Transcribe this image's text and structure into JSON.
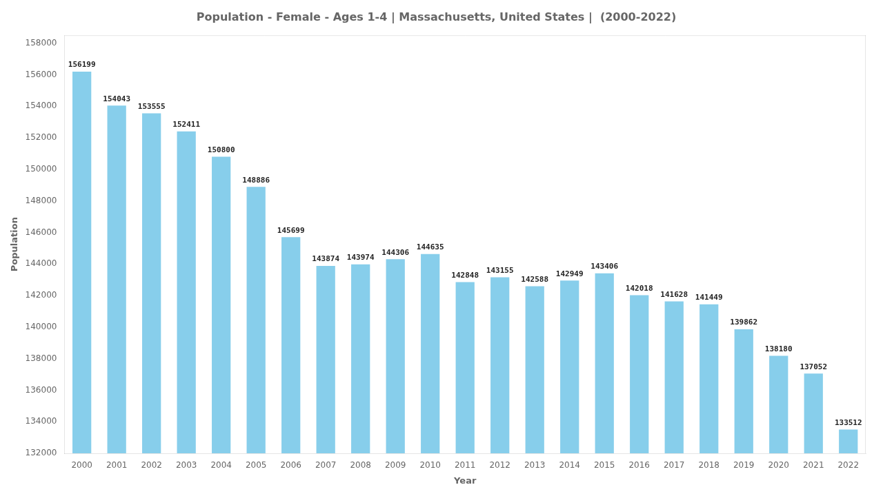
{
  "chart_data": {
    "type": "bar",
    "title": "Population - Female - Ages 1-4 | Massachusetts, United States |  (2000-2022)",
    "x_label": "Year",
    "y_label": "Population",
    "categories": [
      "2000",
      "2001",
      "2002",
      "2003",
      "2004",
      "2005",
      "2006",
      "2007",
      "2008",
      "2009",
      "2010",
      "2011",
      "2012",
      "2013",
      "2014",
      "2015",
      "2016",
      "2017",
      "2018",
      "2019",
      "2020",
      "2021",
      "2022"
    ],
    "values": [
      156199,
      154043,
      153555,
      152411,
      150800,
      148886,
      145699,
      143874,
      143974,
      144306,
      144635,
      142848,
      143155,
      142588,
      142949,
      143406,
      142018,
      141628,
      141449,
      139862,
      138180,
      137052,
      133512
    ],
    "color": "#87CEEB",
    "ylim": [
      132000,
      158500
    ],
    "yticks": [
      132000,
      134000,
      136000,
      138000,
      140000,
      142000,
      144000,
      146000,
      148000,
      150000,
      152000,
      154000,
      156000,
      158000
    ],
    "grid": false,
    "data_labels": true
  }
}
